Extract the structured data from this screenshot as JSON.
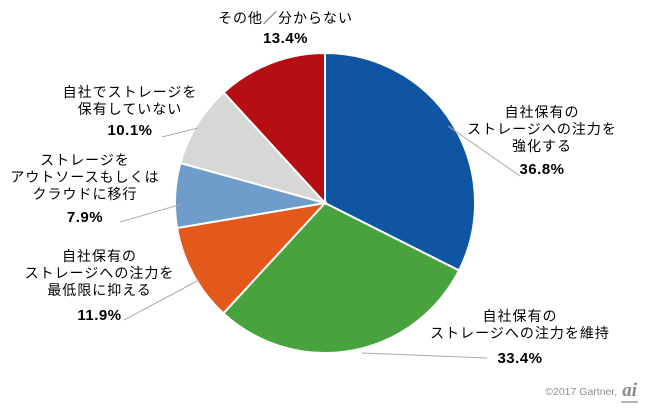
{
  "chart_data": {
    "type": "pie",
    "title": "",
    "unit": "%",
    "legend": "none",
    "start_angle_deg": 0,
    "direction": "clockwise",
    "slices": [
      {
        "label": "自社保有の\nストレージへの注力を\n強化する",
        "value": 36.8,
        "value_label": "36.8%",
        "color": "#0F55A3"
      },
      {
        "label": "自社保有の\nストレージへの注力を維持",
        "value": 33.4,
        "value_label": "33.4%",
        "color": "#48A33E"
      },
      {
        "label": "自社保有の\nストレージへの注力を\n最低限に抑える",
        "value": 11.9,
        "value_label": "11.9%",
        "color": "#E3591C"
      },
      {
        "label": "ストレージを\nアウトソースもしくは\nクラウドに移行",
        "value": 7.9,
        "value_label": "7.9%",
        "color": "#6E9DCB"
      },
      {
        "label": "自社でストレージを\n保有していない",
        "value": 10.1,
        "value_label": "10.1%",
        "color": "#D7D7D7"
      },
      {
        "label": "その他／分からない",
        "value": 13.4,
        "value_label": "13.4%",
        "color": "#B50F13"
      }
    ]
  },
  "footer": {
    "copyright": "©2017 Gartner,",
    "logo_text": "ai"
  }
}
